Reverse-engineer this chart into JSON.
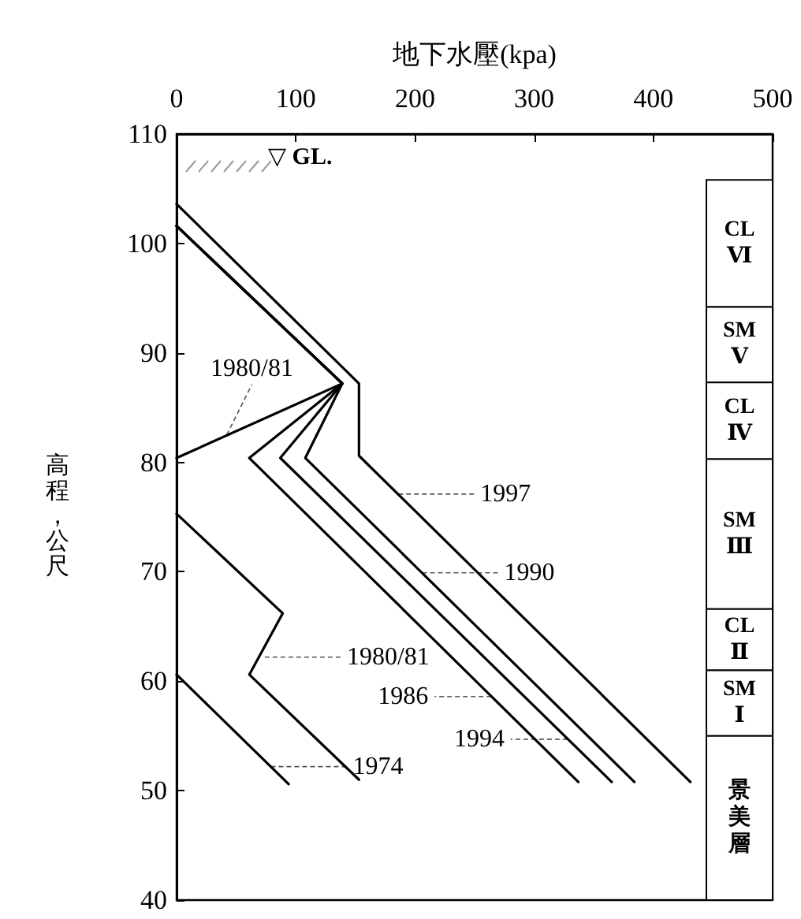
{
  "chart_data": {
    "type": "line",
    "xlabel": "地下水壓(kpa)",
    "ylabel": "高程，公尺",
    "xlim": [
      0,
      500
    ],
    "xticks": [
      0,
      100,
      200,
      300,
      400,
      500
    ],
    "ylim": [
      40,
      110
    ],
    "yticks": [
      40,
      50,
      60,
      70,
      80,
      90,
      100,
      110
    ],
    "grid": false,
    "marker": "none",
    "line_style": "solid",
    "series": [
      {
        "color": "#000000",
        "x": [
          0,
          94
        ],
        "values": [
          60.6,
          50.6
        ]
      },
      {
        "color": "#000000",
        "x": [
          0,
          89,
          61,
          153
        ],
        "values": [
          75.3,
          66.2,
          60.6,
          51
        ]
      },
      {
        "color": "#000000",
        "x": [
          0,
          139,
          0
        ],
        "values": [
          101.6,
          87.2,
          80.4
        ]
      },
      {
        "color": "#000000",
        "x": [
          0,
          139,
          61,
          337
        ],
        "values": [
          101.6,
          87.2,
          80.4,
          50.8
        ]
      },
      {
        "color": "#000000",
        "x": [
          0,
          139,
          87,
          365
        ],
        "values": [
          101.6,
          87.2,
          80.4,
          50.8
        ]
      },
      {
        "color": "#000000",
        "x": [
          0,
          139,
          108,
          384
        ],
        "values": [
          101.6,
          87.2,
          80.4,
          50.8
        ]
      },
      {
        "color": "#000000",
        "x": [
          0,
          153,
          153,
          431
        ],
        "values": [
          103.6,
          87.2,
          80.6,
          50.8
        ]
      }
    ],
    "bands": [
      {
        "axis": "y",
        "from": 94.2,
        "to": 105.8,
        "label": "CL Ⅵ"
      },
      {
        "axis": "y",
        "from": 87.3,
        "to": 94.2,
        "label": "SM Ⅴ"
      },
      {
        "axis": "y",
        "from": 80.3,
        "to": 87.3,
        "label": "CL Ⅳ"
      },
      {
        "axis": "y",
        "from": 66.6,
        "to": 80.3,
        "label": "SM Ⅲ"
      },
      {
        "axis": "y",
        "from": 61,
        "to": 66.6,
        "label": "CL Ⅱ"
      },
      {
        "axis": "y",
        "from": 55,
        "to": 61,
        "label": "SM Ⅰ"
      },
      {
        "axis": "y",
        "from": 40,
        "to": 55,
        "label": "景美層"
      }
    ],
    "annotations": [
      "▽ GL.",
      {
        "text": "1980/81",
        "x": 42,
        "y": 82.5
      },
      {
        "text": "1997",
        "x": 186,
        "y": 77.1
      },
      {
        "text": "1990",
        "x": 206,
        "y": 69.9
      },
      {
        "text": "1980/81",
        "x": 74,
        "y": 62.2
      },
      {
        "text": "1986",
        "x": 264,
        "y": 58.6
      },
      {
        "text": "1994",
        "x": 328,
        "y": 54.7
      },
      {
        "text": "1974",
        "x": 79,
        "y": 52.2
      }
    ]
  }
}
